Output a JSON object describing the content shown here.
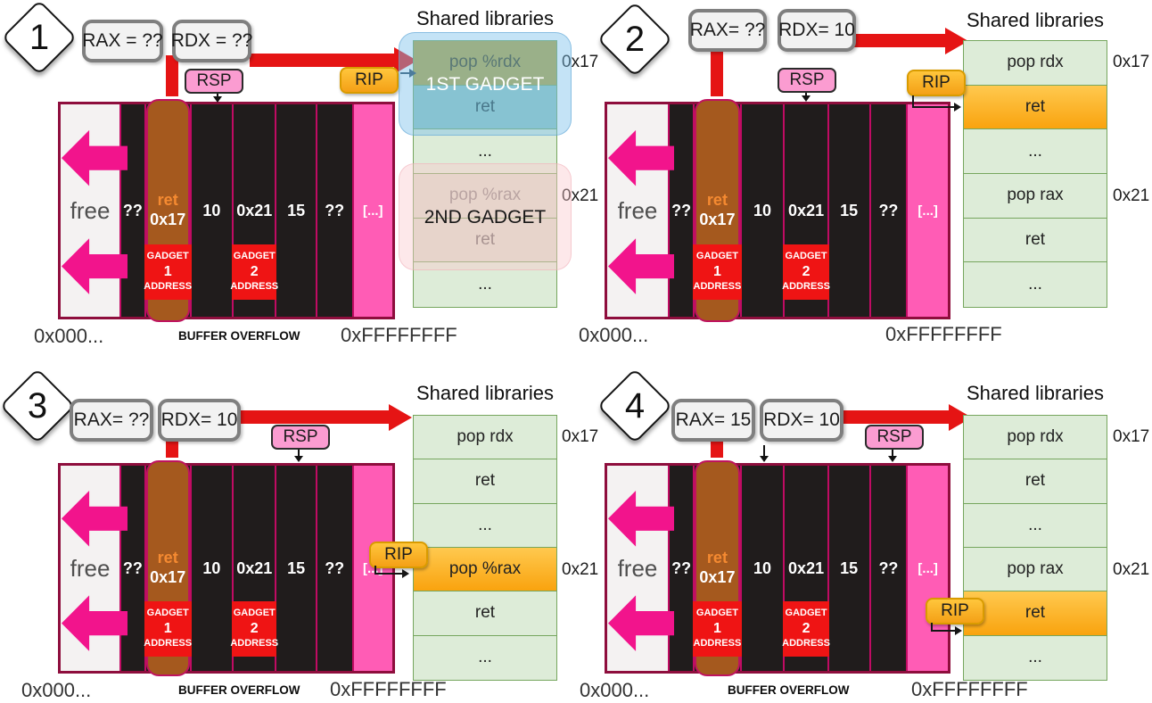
{
  "colors": {
    "red_arrow": "#e51414",
    "stack_border": "#8e0e3d",
    "stack_pink_cell": "#ff5cb5",
    "free_arrow_pink": "#f2148c",
    "rsp_pink": "#fb9cd1",
    "rip_orange": "#f9a30e",
    "library_green": "#ddecd8",
    "highlight_orange": "#fca311",
    "capsule_brown": "#a5591e",
    "gadget_red": "#ef1414",
    "overlay_blue": "#7cc1eb",
    "overlay_pink": "#facdd1"
  },
  "panels": [
    {
      "step": "1",
      "registers": {
        "rax": "RAX = ??",
        "rdx": "RDX = ??"
      },
      "rsp": "RSP",
      "rip": "RIP",
      "library": {
        "title": "Shared libraries",
        "rows": [
          {
            "label": "pop %rdx",
            "addr": "0x17"
          },
          {
            "label": "ret"
          },
          {
            "label": "..."
          },
          {
            "label": "pop %rax",
            "addr": "0x21"
          },
          {
            "label": "ret"
          },
          {
            "label": "..."
          }
        ],
        "gadget1_overlay": "1ST GADGET",
        "gadget2_overlay": "2ND GADGET"
      },
      "memory": {
        "free": "free",
        "q1": "??",
        "ret": "ret",
        "ret_addr": "0x17",
        "v1": "10",
        "v2": "0x21",
        "v3": "15",
        "q2": "??",
        "rest": "[...]",
        "gadget1": {
          "l1": "GADGET",
          "l2": "1",
          "l3": "ADDRESS"
        },
        "gadget2": {
          "l1": "GADGET",
          "l2": "2",
          "l3": "ADDRESS"
        }
      },
      "footer": {
        "left": "0x000...",
        "center": "BUFFER OVERFLOW",
        "right": "0xFFFFFFFF"
      }
    },
    {
      "step": "2",
      "registers": {
        "rax": "RAX= ??",
        "rdx": "RDX= 10"
      },
      "rsp": "RSP",
      "rip": "RIP",
      "library": {
        "title": "Shared libraries",
        "rows": [
          {
            "label": "pop rdx",
            "addr": "0x17"
          },
          {
            "label": "ret"
          },
          {
            "label": "..."
          },
          {
            "label": "pop rax",
            "addr": "0x21"
          },
          {
            "label": "ret"
          },
          {
            "label": "..."
          }
        ]
      },
      "memory": {
        "free": "free",
        "q1": "??",
        "ret": "ret",
        "ret_addr": "0x17",
        "v1": "10",
        "v2": "0x21",
        "v3": "15",
        "q2": "??",
        "rest": "[...]",
        "gadget1": {
          "l1": "GADGET",
          "l2": "1",
          "l3": "ADDRESS"
        },
        "gadget2": {
          "l1": "GADGET",
          "l2": "2",
          "l3": "ADDRESS"
        }
      },
      "footer": {
        "left": "0x000...",
        "right": "0xFFFFFFFF"
      }
    },
    {
      "step": "3",
      "registers": {
        "rax": "RAX= ??",
        "rdx": "RDX= 10"
      },
      "rsp": "RSP",
      "rip": "RIP",
      "library": {
        "title": "Shared libraries",
        "rows": [
          {
            "label": "pop rdx",
            "addr": "0x17"
          },
          {
            "label": "ret"
          },
          {
            "label": "..."
          },
          {
            "label": "pop %rax",
            "addr": "0x21"
          },
          {
            "label": "ret"
          },
          {
            "label": "..."
          }
        ]
      },
      "memory": {
        "free": "free",
        "q1": "??",
        "ret": "ret",
        "ret_addr": "0x17",
        "v1": "10",
        "v2": "0x21",
        "v3": "15",
        "q2": "??",
        "rest": "[...]",
        "gadget1": {
          "l1": "GADGET",
          "l2": "1",
          "l3": "ADDRESS"
        },
        "gadget2": {
          "l1": "GADGET",
          "l2": "2",
          "l3": "ADDRESS"
        }
      },
      "footer": {
        "left": "0x000...",
        "center": "BUFFER OVERFLOW",
        "right": "0xFFFFFFFF"
      }
    },
    {
      "step": "4",
      "registers": {
        "rax": "RAX= 15",
        "rdx": "RDX= 10"
      },
      "rsp": "RSP",
      "rip": "RIP",
      "library": {
        "title": "Shared libraries",
        "rows": [
          {
            "label": "pop rdx",
            "addr": "0x17"
          },
          {
            "label": "ret"
          },
          {
            "label": "..."
          },
          {
            "label": "pop rax",
            "addr": "0x21"
          },
          {
            "label": "ret"
          },
          {
            "label": "..."
          }
        ]
      },
      "memory": {
        "free": "free",
        "q1": "??",
        "ret": "ret",
        "ret_addr": "0x17",
        "v1": "10",
        "v2": "0x21",
        "v3": "15",
        "q2": "??",
        "rest": "[...]",
        "gadget1": {
          "l1": "GADGET",
          "l2": "1",
          "l3": "ADDRESS"
        },
        "gadget2": {
          "l1": "GADGET",
          "l2": "2",
          "l3": "ADDRESS"
        }
      },
      "footer": {
        "left": "0x000...",
        "center": "BUFFER OVERFLOW",
        "right": "0xFFFFFFFF"
      }
    }
  ]
}
